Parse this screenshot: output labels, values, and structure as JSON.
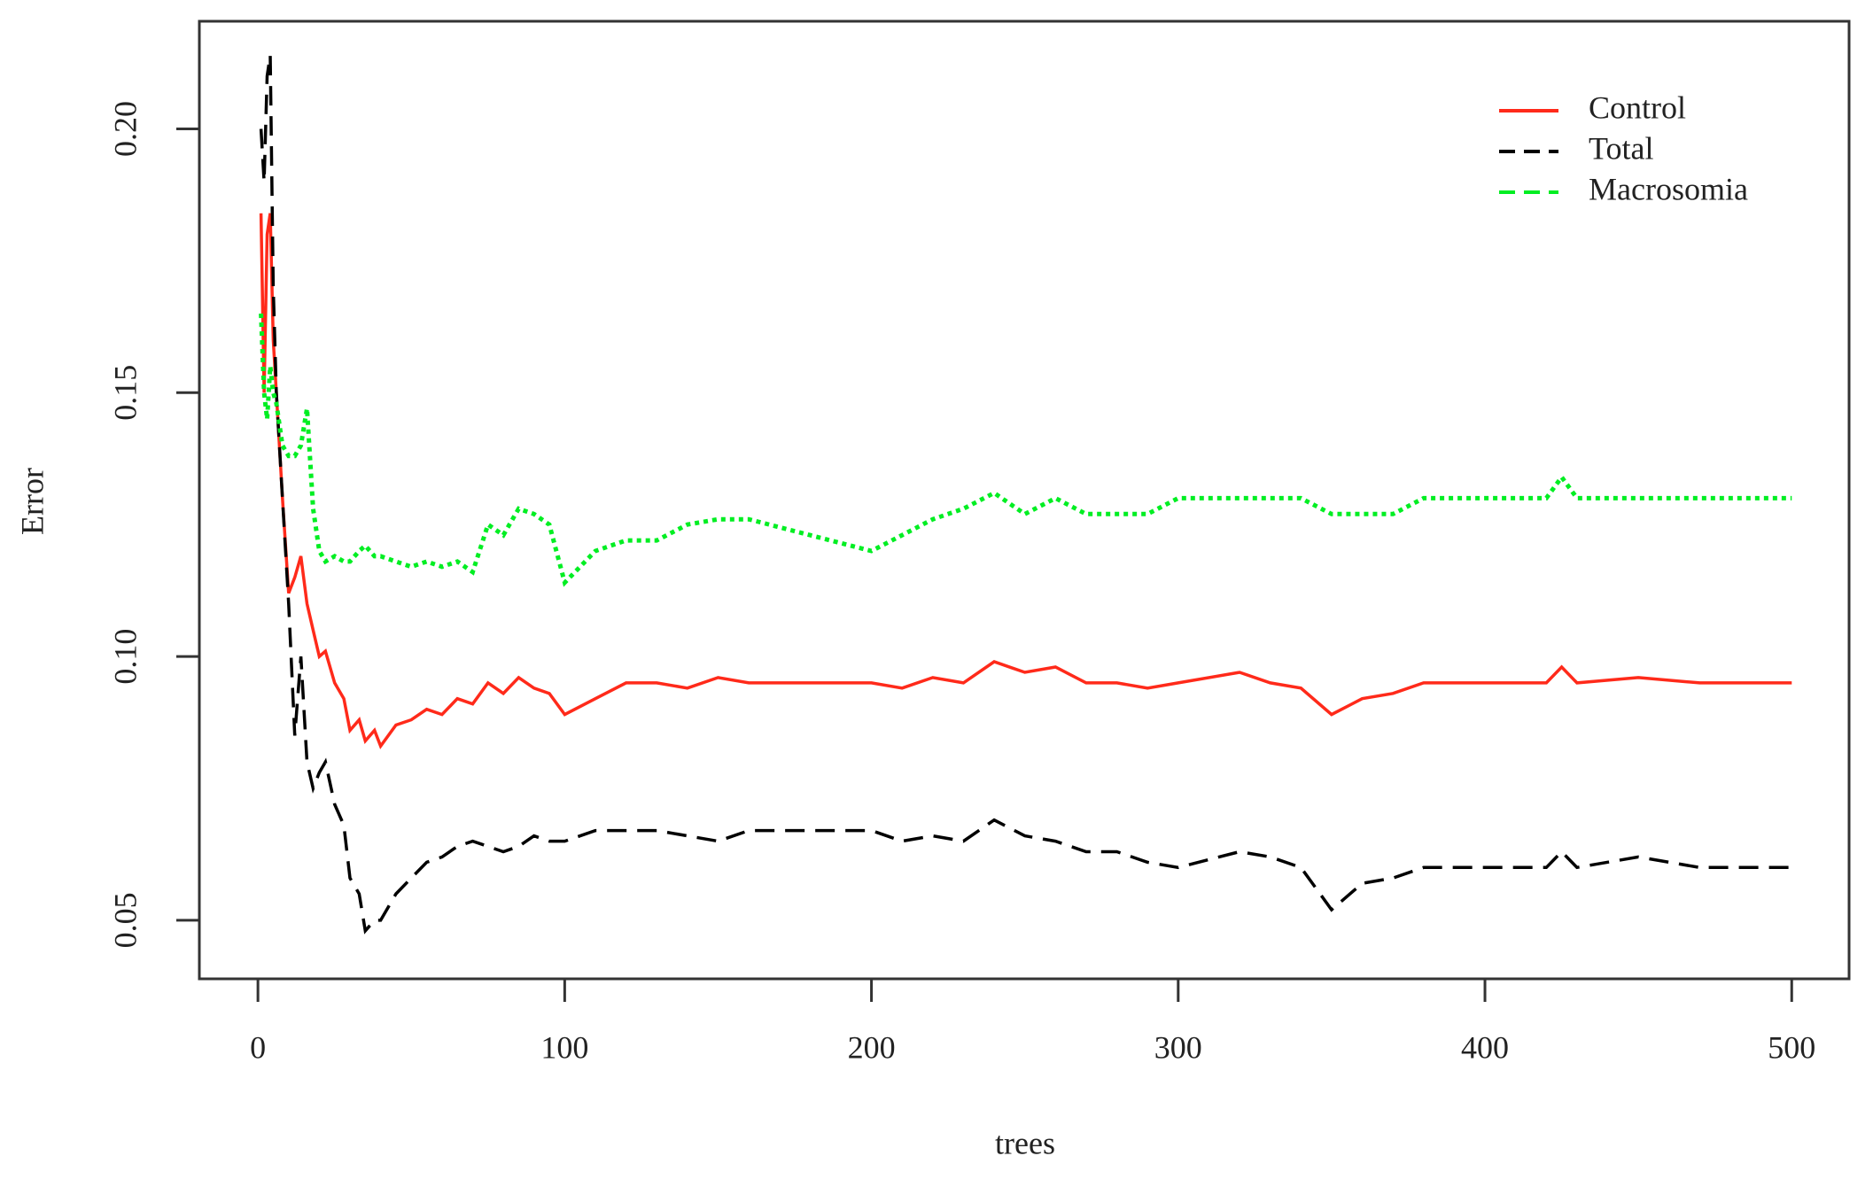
{
  "chart_data": {
    "type": "line",
    "x_label": "trees",
    "y_label": "Error",
    "x": [
      1,
      2,
      3,
      4,
      5,
      6,
      8,
      10,
      12,
      14,
      16,
      18,
      20,
      22,
      25,
      28,
      30,
      33,
      35,
      38,
      40,
      45,
      50,
      55,
      60,
      65,
      70,
      75,
      80,
      85,
      90,
      95,
      100,
      110,
      120,
      130,
      140,
      150,
      160,
      180,
      200,
      210,
      220,
      230,
      240,
      250,
      260,
      270,
      280,
      290,
      300,
      320,
      330,
      340,
      350,
      360,
      370,
      380,
      400,
      420,
      425,
      430,
      450,
      470,
      500
    ],
    "series": [
      {
        "name": "Control",
        "color": "#ff2a1a",
        "linestyle": "solid",
        "values": [
          0.184,
          0.15,
          0.18,
          0.184,
          0.16,
          0.15,
          0.13,
          0.112,
          0.115,
          0.119,
          0.11,
          0.105,
          0.1,
          0.101,
          0.095,
          0.092,
          0.086,
          0.088,
          0.084,
          0.086,
          0.083,
          0.087,
          0.088,
          0.09,
          0.089,
          0.092,
          0.091,
          0.095,
          0.093,
          0.096,
          0.094,
          0.093,
          0.089,
          0.092,
          0.095,
          0.095,
          0.094,
          0.096,
          0.095,
          0.095,
          0.095,
          0.094,
          0.096,
          0.095,
          0.099,
          0.097,
          0.098,
          0.095,
          0.095,
          0.094,
          0.095,
          0.097,
          0.095,
          0.094,
          0.089,
          0.092,
          0.093,
          0.095,
          0.095,
          0.095,
          0.098,
          0.095,
          0.096,
          0.095,
          0.095
        ]
      },
      {
        "name": "Total",
        "color": "#000000",
        "linestyle": "dashed",
        "values": [
          0.2,
          0.19,
          0.21,
          0.214,
          0.17,
          0.15,
          0.13,
          0.11,
          0.085,
          0.1,
          0.08,
          0.075,
          0.078,
          0.08,
          0.072,
          0.068,
          0.058,
          0.055,
          0.048,
          0.05,
          0.05,
          0.055,
          0.058,
          0.061,
          0.062,
          0.064,
          0.065,
          0.064,
          0.063,
          0.064,
          0.066,
          0.065,
          0.065,
          0.067,
          0.067,
          0.067,
          0.066,
          0.065,
          0.067,
          0.067,
          0.067,
          0.065,
          0.066,
          0.065,
          0.069,
          0.066,
          0.065,
          0.063,
          0.063,
          0.061,
          0.06,
          0.063,
          0.062,
          0.06,
          0.052,
          0.057,
          0.058,
          0.06,
          0.06,
          0.06,
          0.063,
          0.06,
          0.062,
          0.06,
          0.06
        ]
      },
      {
        "name": "Macrosomia",
        "color": "#00ee22",
        "linestyle": "dotted",
        "values": [
          0.165,
          0.15,
          0.145,
          0.155,
          0.15,
          0.148,
          0.14,
          0.138,
          0.138,
          0.14,
          0.147,
          0.128,
          0.12,
          0.118,
          0.119,
          0.118,
          0.118,
          0.12,
          0.121,
          0.119,
          0.119,
          0.118,
          0.117,
          0.118,
          0.117,
          0.118,
          0.116,
          0.125,
          0.123,
          0.128,
          0.127,
          0.125,
          0.114,
          0.12,
          0.122,
          0.122,
          0.125,
          0.126,
          0.126,
          0.123,
          0.12,
          0.123,
          0.126,
          0.128,
          0.131,
          0.127,
          0.13,
          0.127,
          0.127,
          0.127,
          0.13,
          0.13,
          0.13,
          0.13,
          0.127,
          0.127,
          0.127,
          0.13,
          0.13,
          0.13,
          0.134,
          0.13,
          0.13,
          0.13,
          0.13
        ]
      }
    ],
    "xlim": [
      -19.1,
      518.7
    ],
    "xticks": [
      0,
      100,
      200,
      300,
      400,
      500
    ],
    "ylim": [
      0.0389,
      0.2204
    ],
    "yticks": [
      {
        "value": 0.05,
        "label": "0.05"
      },
      {
        "value": 0.1,
        "label": "0.10"
      },
      {
        "value": 0.15,
        "label": "0.15"
      },
      {
        "value": 0.2,
        "label": "0.20"
      }
    ],
    "legend": "topright"
  }
}
